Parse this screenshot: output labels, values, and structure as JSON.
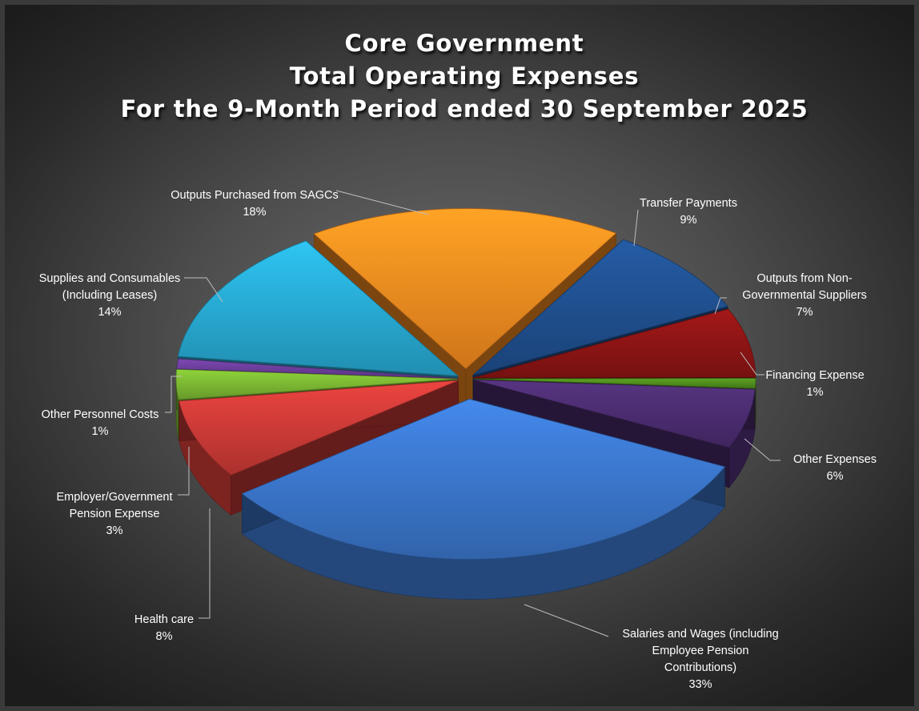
{
  "chart_data": {
    "type": "pie",
    "title_lines": [
      "Core Government",
      "Total Operating Expenses",
      "For the 9-Month Period ended 30 September 2025"
    ],
    "legend": "none",
    "slices": [
      {
        "label": "Salaries and Wages (including Employee Pension Contributions)",
        "label_lines": [
          "Salaries and Wages (including",
          "Employee Pension",
          "Contributions)"
        ],
        "pct_text": "33%",
        "value": 33,
        "color": "#3a74c8"
      },
      {
        "label": "Health care",
        "label_lines": [
          "Health care"
        ],
        "pct_text": "8%",
        "value": 8,
        "color": "#c93a36"
      },
      {
        "label": "Employer/Government Pension Expense",
        "label_lines": [
          "Employer/Government",
          "Pension Expense"
        ],
        "pct_text": "3%",
        "value": 3,
        "color": "#79b431"
      },
      {
        "label": "Other Personnel Costs",
        "label_lines": [
          "Other Personnel Costs"
        ],
        "pct_text": "1%",
        "value": 1,
        "color": "#6a3d98"
      },
      {
        "label": "Supplies and Consumables (Including Leases)",
        "label_lines": [
          "Supplies and Consumables",
          "(Including Leases)"
        ],
        "pct_text": "14%",
        "value": 14,
        "color": "#27a7cf"
      },
      {
        "label": "Outputs Purchased from SAGCs",
        "label_lines": [
          "Outputs Purchased from SAGCs"
        ],
        "pct_text": "18%",
        "value": 18,
        "color": "#f58a1f"
      },
      {
        "label": "Transfer Payments",
        "label_lines": [
          "Transfer Payments"
        ],
        "pct_text": "9%",
        "value": 9,
        "color": "#1f4e8c"
      },
      {
        "label": "Outputs from Non-Governmental Suppliers",
        "label_lines": [
          "Outputs from Non-",
          "Governmental Suppliers"
        ],
        "pct_text": "7%",
        "value": 7,
        "color": "#8b1414"
      },
      {
        "label": "Financing Expense",
        "label_lines": [
          "Financing Expense"
        ],
        "pct_text": "1%",
        "value": 1,
        "color": "#4e8a1d"
      },
      {
        "label": "Other Expenses",
        "label_lines": [
          "Other Expenses"
        ],
        "pct_text": "6%",
        "value": 6,
        "color": "#4a2c6e"
      }
    ]
  }
}
